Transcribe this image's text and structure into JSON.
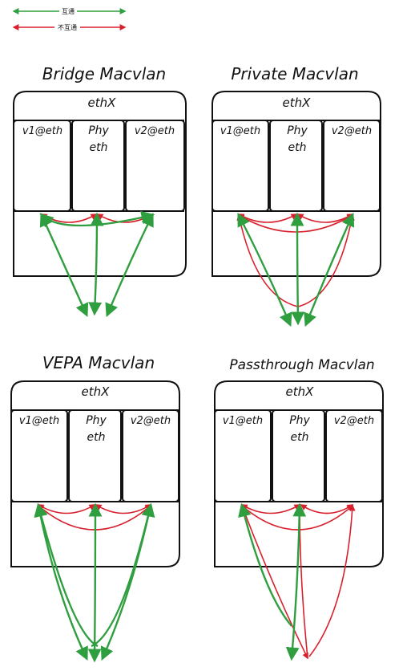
{
  "legend": {
    "items": [
      {
        "label": "互通",
        "color": "#2f9e3f"
      },
      {
        "label": "不互通",
        "color": "#d9212e"
      }
    ]
  },
  "colors": {
    "green": "#2f9e3f",
    "red": "#d9212e",
    "outline": "#111111",
    "background": "#ffffff"
  },
  "panels": [
    {
      "title": "Bridge Macvlan",
      "interface": "ethX",
      "slots": {
        "left": "v1@eth",
        "middle_top": "Phy",
        "middle_bottom": "eth",
        "right": "v2@eth"
      }
    },
    {
      "title": "Private Macvlan",
      "interface": "ethX",
      "slots": {
        "left": "v1@eth",
        "middle_top": "Phy",
        "middle_bottom": "eth",
        "right": "v2@eth"
      }
    },
    {
      "title": "VEPA Macvlan",
      "interface": "ethX",
      "slots": {
        "left": "v1@eth",
        "middle_top": "Phy",
        "middle_bottom": "eth",
        "right": "v2@eth"
      }
    },
    {
      "title": "Passthrough Macvlan",
      "interface": "ethX",
      "slots": {
        "left": "v1@eth",
        "middle_top": "Phy",
        "middle_bottom": "eth",
        "right": "v2@eth"
      }
    }
  ]
}
